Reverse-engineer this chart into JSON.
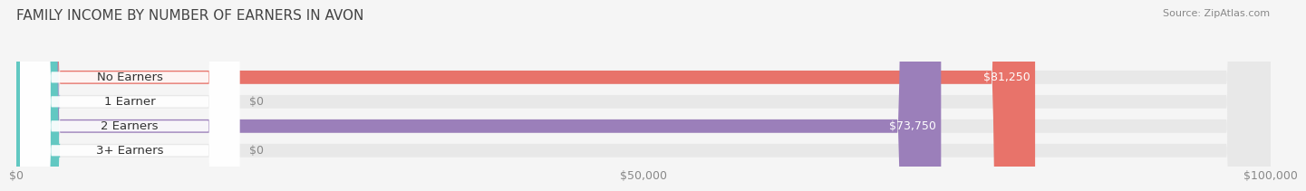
{
  "title": "FAMILY INCOME BY NUMBER OF EARNERS IN AVON",
  "source": "Source: ZipAtlas.com",
  "categories": [
    "No Earners",
    "1 Earner",
    "2 Earners",
    "3+ Earners"
  ],
  "values": [
    81250,
    0,
    73750,
    0
  ],
  "bar_colors": [
    "#E8736A",
    "#A8C4E0",
    "#9B7FBA",
    "#62C8C2"
  ],
  "xlim": [
    0,
    100000
  ],
  "xticks": [
    0,
    50000,
    100000
  ],
  "xtick_labels": [
    "$0",
    "$50,000",
    "$100,000"
  ],
  "bar_height": 0.55,
  "background_color": "#f5f5f5",
  "bar_bg_color": "#e8e8e8",
  "title_fontsize": 11,
  "tick_fontsize": 9,
  "label_fontsize": 9.5,
  "value_fontsize": 9
}
